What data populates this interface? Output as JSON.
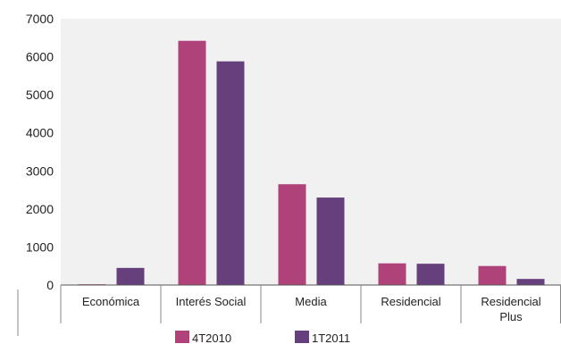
{
  "chart_data": {
    "type": "bar",
    "categories": [
      "Económica",
      "Interés Social",
      "Media",
      "Residencial",
      "Residencial Plus"
    ],
    "category_lines": [
      [
        "Económica"
      ],
      [
        "Interés Social"
      ],
      [
        "Media"
      ],
      [
        "Residencial"
      ],
      [
        "Residencial",
        "Plus"
      ]
    ],
    "series": [
      {
        "name": "4T2010",
        "color": "#b0427a",
        "values": [
          20,
          6420,
          2650,
          570,
          500
        ]
      },
      {
        "name": "1T2011",
        "color": "#663f7d",
        "values": [
          450,
          5880,
          2300,
          560,
          160
        ]
      }
    ],
    "y_ticks": [
      "0",
      "1000",
      "2000",
      "3000",
      "4000",
      "5000",
      "6000",
      "7000"
    ],
    "ylim": [
      0,
      7000
    ],
    "grid": false,
    "plot_background": "#f1f1f1",
    "legend_position": "bottom"
  }
}
